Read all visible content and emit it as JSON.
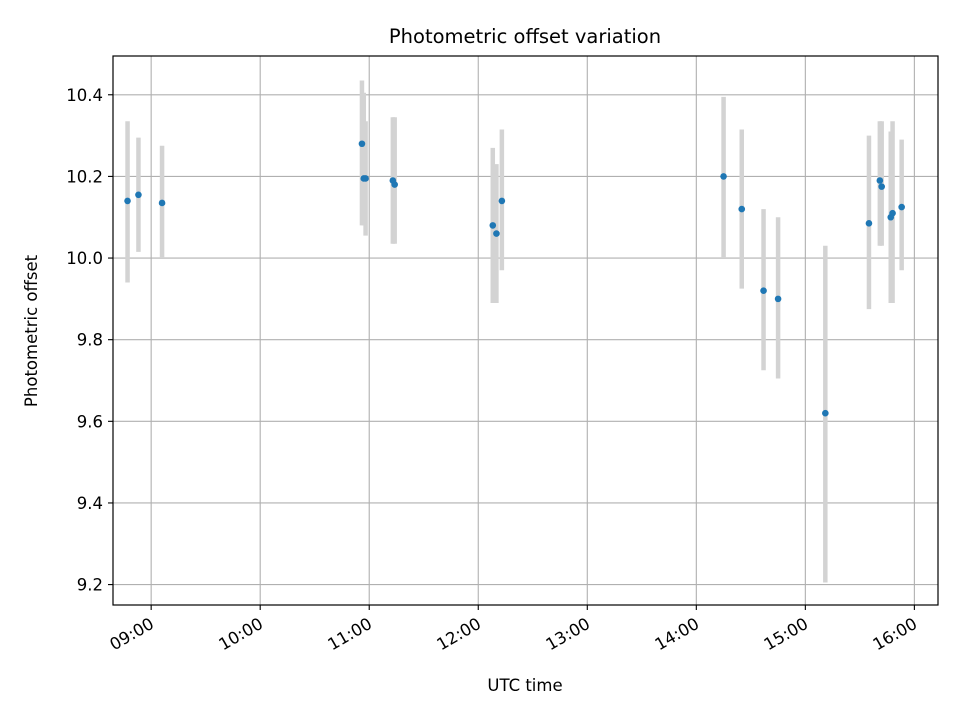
{
  "chart_data": {
    "type": "scatter",
    "title": "Photometric offset variation",
    "xlabel": "UTC time",
    "ylabel": "Photometric offset",
    "x_axis_type": "time",
    "xlim": [
      "08:39",
      "16:13"
    ],
    "ylim": [
      9.15,
      10.495
    ],
    "yticks": [
      9.2,
      9.4,
      9.6,
      9.8,
      10.0,
      10.2,
      10.4
    ],
    "ytick_labels": [
      "9.2",
      "9.4",
      "9.6",
      "9.8",
      "10.0",
      "10.2",
      "10.4"
    ],
    "xticks": [
      "09:00",
      "10:00",
      "11:00",
      "12:00",
      "13:00",
      "14:00",
      "15:00",
      "16:00"
    ],
    "grid": true,
    "colors": {
      "point": "#1f77b4",
      "errorbar": "#d3d3d3",
      "grid": "#b0b0b0",
      "axes": "#000000"
    },
    "points": [
      {
        "x": "08:47",
        "y": 10.14,
        "lo": 9.94,
        "hi": 10.335
      },
      {
        "x": "08:53",
        "y": 10.155,
        "lo": 10.015,
        "hi": 10.295
      },
      {
        "x": "09:06",
        "y": 10.135,
        "lo": 10.0,
        "hi": 10.275
      },
      {
        "x": "10:56",
        "y": 10.28,
        "lo": 10.08,
        "hi": 10.435
      },
      {
        "x": "10:57",
        "y": 10.195,
        "lo": 10.08,
        "hi": 10.405
      },
      {
        "x": "10:58",
        "y": 10.195,
        "lo": 10.055,
        "hi": 10.335
      },
      {
        "x": "11:13",
        "y": 10.19,
        "lo": 10.035,
        "hi": 10.345
      },
      {
        "x": "11:14",
        "y": 10.18,
        "lo": 10.035,
        "hi": 10.345
      },
      {
        "x": "12:08",
        "y": 10.08,
        "lo": 9.89,
        "hi": 10.27
      },
      {
        "x": "12:10",
        "y": 10.06,
        "lo": 9.89,
        "hi": 10.23
      },
      {
        "x": "12:13",
        "y": 10.14,
        "lo": 9.97,
        "hi": 10.315
      },
      {
        "x": "14:15",
        "y": 10.2,
        "lo": 10.0,
        "hi": 10.395
      },
      {
        "x": "14:25",
        "y": 10.12,
        "lo": 9.925,
        "hi": 10.315
      },
      {
        "x": "14:37",
        "y": 9.92,
        "lo": 9.725,
        "hi": 10.12
      },
      {
        "x": "14:45",
        "y": 9.9,
        "lo": 9.705,
        "hi": 10.1
      },
      {
        "x": "15:11",
        "y": 9.62,
        "lo": 9.205,
        "hi": 10.03
      },
      {
        "x": "15:35",
        "y": 10.085,
        "lo": 9.875,
        "hi": 10.3
      },
      {
        "x": "15:41",
        "y": 10.19,
        "lo": 10.03,
        "hi": 10.335
      },
      {
        "x": "15:42",
        "y": 10.175,
        "lo": 10.03,
        "hi": 10.335
      },
      {
        "x": "15:47",
        "y": 10.1,
        "lo": 9.89,
        "hi": 10.31
      },
      {
        "x": "15:48",
        "y": 10.11,
        "lo": 9.89,
        "hi": 10.335
      },
      {
        "x": "15:53",
        "y": 10.125,
        "lo": 9.97,
        "hi": 10.29
      }
    ]
  }
}
